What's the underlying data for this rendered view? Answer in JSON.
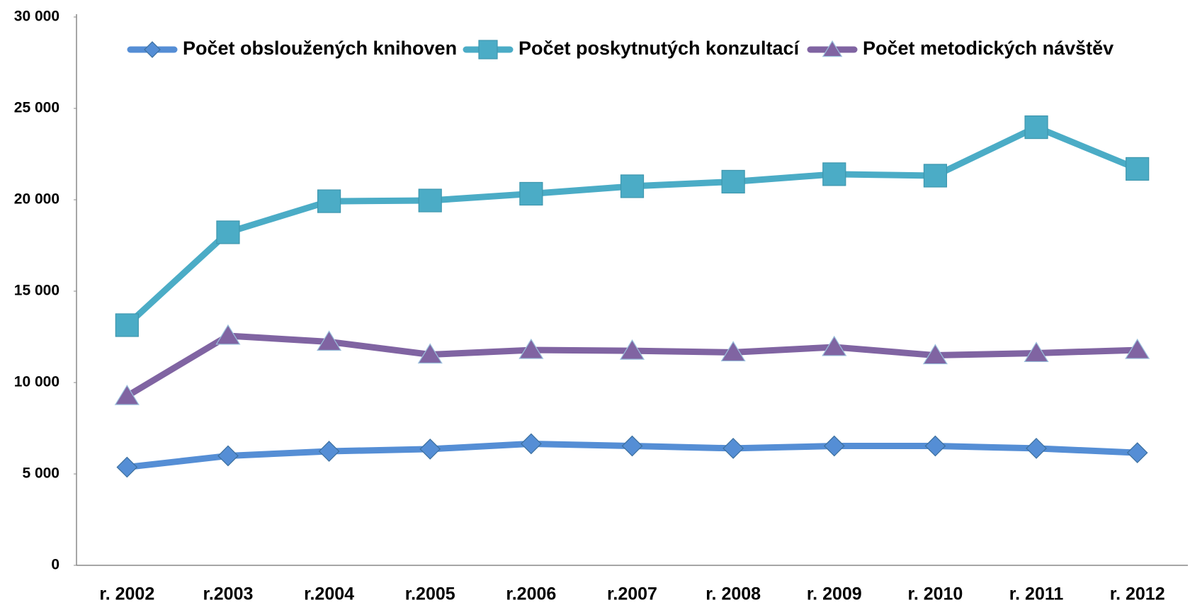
{
  "chart_data": {
    "type": "line",
    "categories": [
      "r. 2002",
      "r.2003",
      "r.2004",
      "r.2005",
      "r.2006",
      "r.2007",
      "r. 2008",
      "r. 2009",
      "r. 2010",
      "r. 2011",
      "r. 2012"
    ],
    "series": [
      {
        "name": "Počet obsloužených knihoven",
        "color": "#558ed5",
        "marker": "diamond",
        "values": [
          5370,
          5990,
          6240,
          6360,
          6650,
          6530,
          6400,
          6530,
          6530,
          6400,
          6160
        ]
      },
      {
        "name": "Počet poskytnutých konzultací",
        "color": "#4bacc6",
        "marker": "square",
        "values": [
          13140,
          18220,
          19920,
          19960,
          20330,
          20740,
          20990,
          21400,
          21320,
          23970,
          21690
        ]
      },
      {
        "name": "Počet metodických návštěv",
        "color": "#8064a2",
        "marker": "triangle",
        "values": [
          9260,
          12560,
          12230,
          11530,
          11780,
          11740,
          11650,
          11940,
          11490,
          11610,
          11780
        ]
      }
    ],
    "ylim": [
      0,
      30000
    ],
    "yticks": [
      0,
      {
        "value": 5000,
        "label": "5 000"
      },
      {
        "value": 10000,
        "label": "10 000"
      },
      {
        "value": 15000,
        "label": "15 000"
      },
      {
        "value": 20000,
        "label": "20 000"
      },
      {
        "value": 25000,
        "label": "25 000"
      },
      {
        "value": 30000,
        "label": "30 000"
      }
    ],
    "grid": false,
    "legend": "top"
  }
}
